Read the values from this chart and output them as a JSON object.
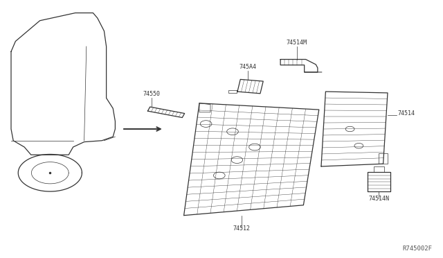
{
  "bg_color": "#ffffff",
  "line_color": "#333333",
  "label_color": "#333333",
  "figsize": [
    6.4,
    3.72
  ],
  "dpi": 100,
  "ref_code": "R745002F",
  "label_74514M": "74514M",
  "label_745A4": "745A4",
  "label_74550": "74550",
  "label_74514": "74514",
  "label_74512": "74512",
  "label_74514N": "74514N"
}
